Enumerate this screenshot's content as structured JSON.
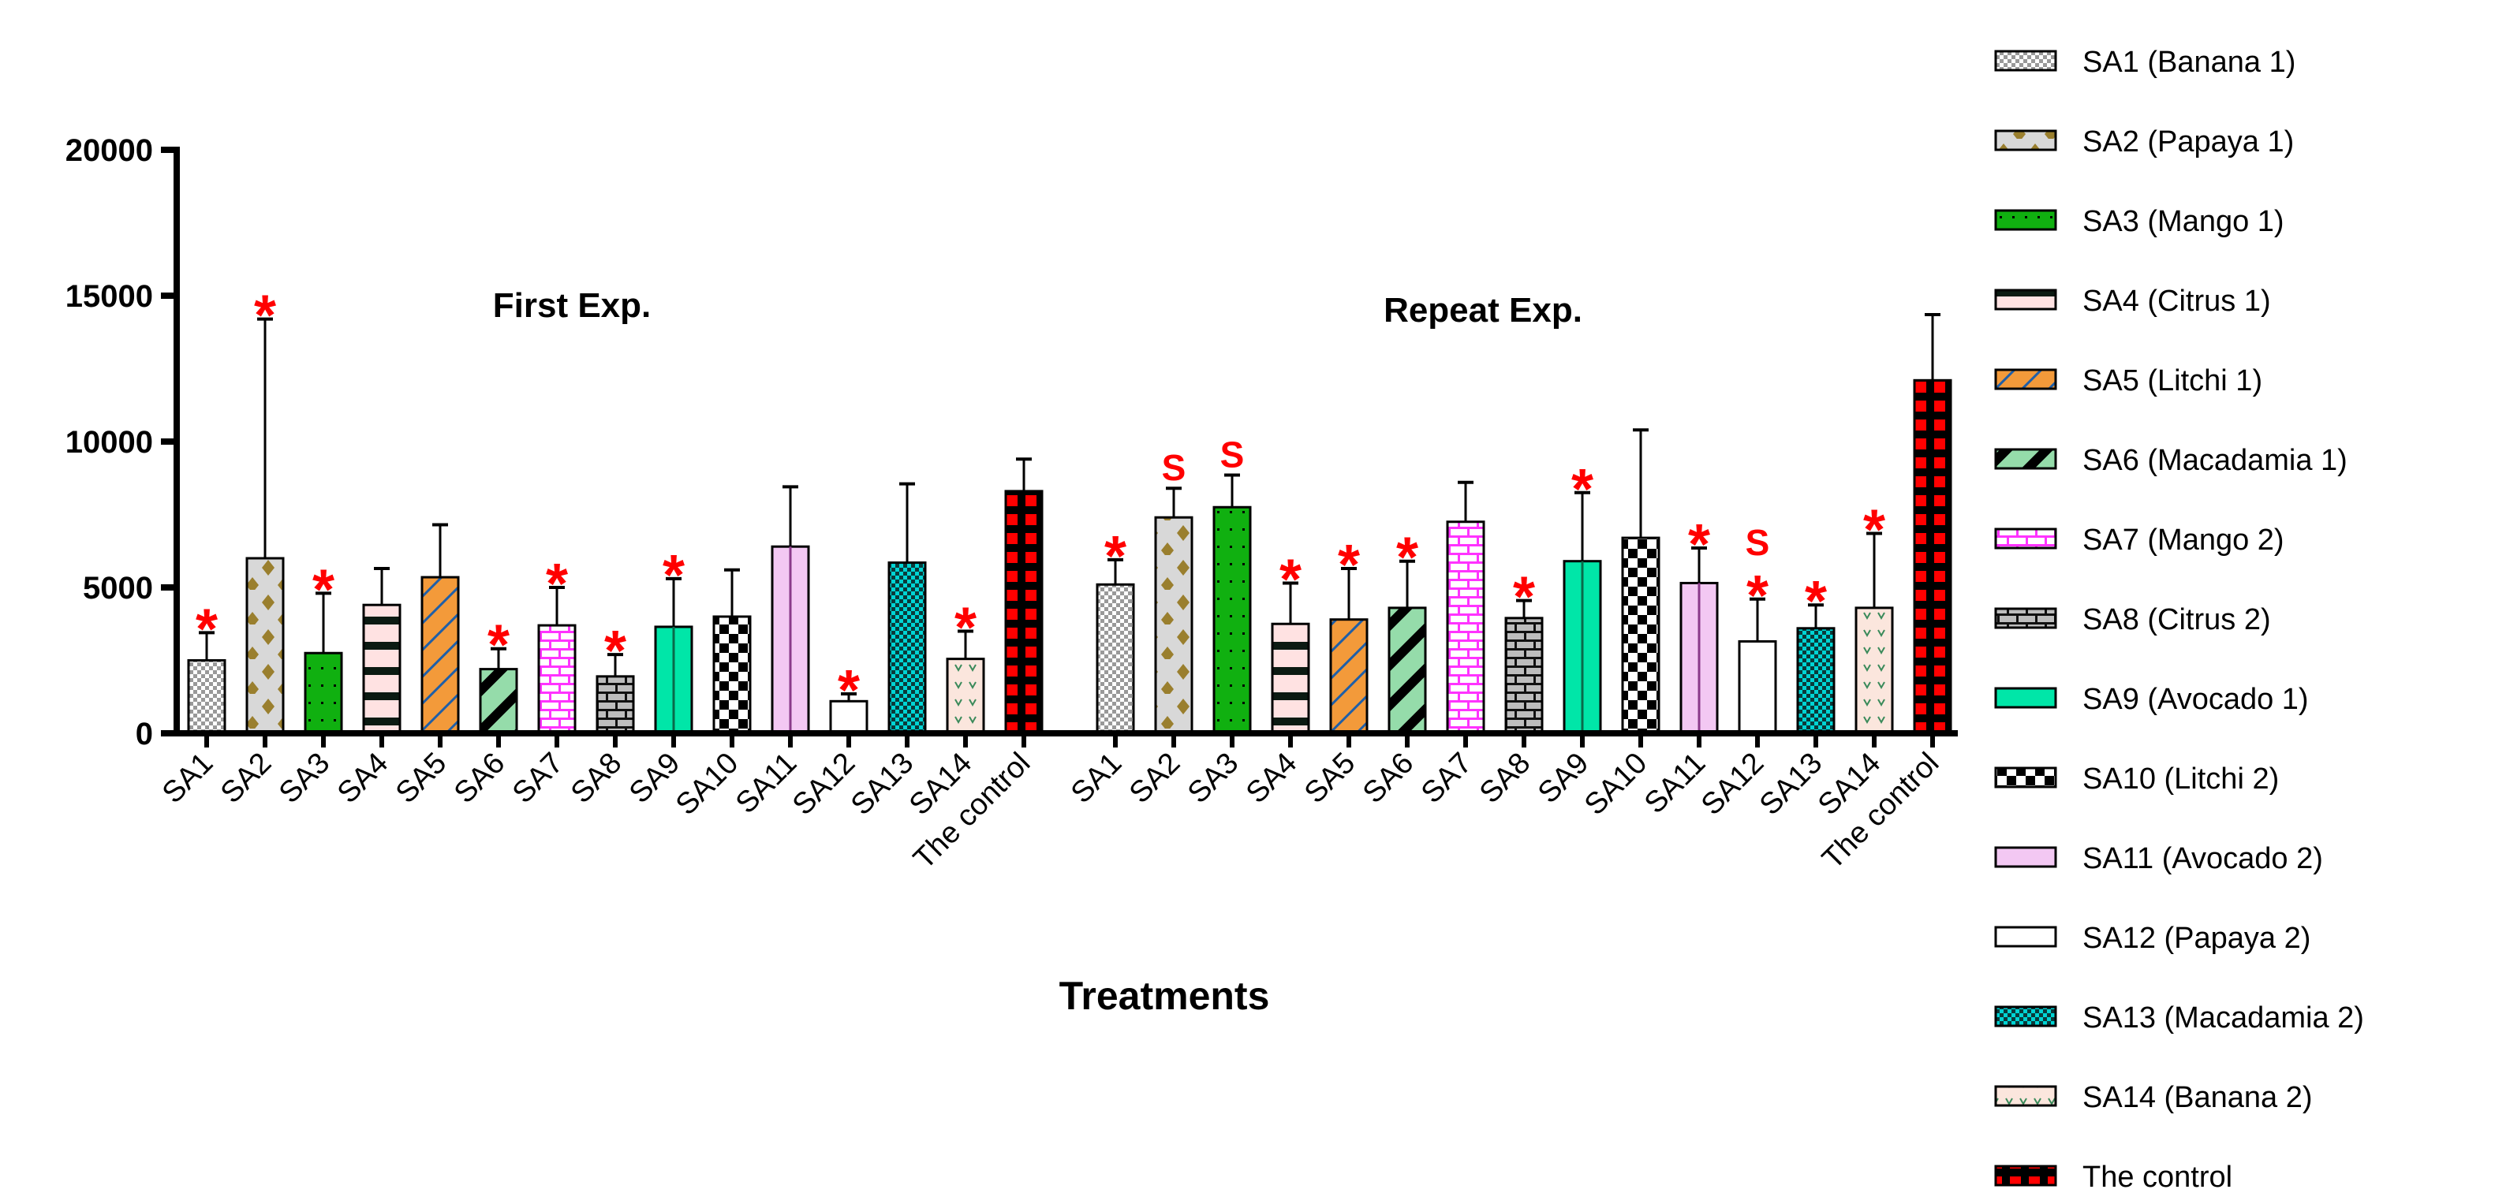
{
  "chart_data": {
    "type": "bar",
    "title": "",
    "xlabel": "Treatments",
    "ylabel": "",
    "ylim": [
      0,
      20000
    ],
    "yticks": [
      "0",
      "5000",
      "10000",
      "15000",
      "20000"
    ],
    "grid": false,
    "legend_placement": "right",
    "categories": [
      "SA1",
      "SA2",
      "SA3",
      "SA4",
      "SA5",
      "SA6",
      "SA7",
      "SA8",
      "SA9",
      "SA10",
      "SA11",
      "SA12",
      "SA13",
      "SA14",
      "The control"
    ],
    "legend": [
      "SA1 (Banana 1)",
      "SA2 (Papaya 1)",
      "SA3 (Mango 1)",
      "SA4 (Citrus 1)",
      "SA5 (Litchi 1)",
      "SA6 (Macadamia 1)",
      "SA7 (Mango 2)",
      "SA8 (Citrus 2)",
      "SA9 (Avocado 1)",
      "SA10 (Litchi 2)",
      "SA11 (Avocado 2)",
      "SA12 (Papaya 2)",
      "SA13 (Macadamia 2)",
      "SA14 (Banana 2)",
      "The control"
    ],
    "series": [
      {
        "name": "First Exp.",
        "values": [
          2500,
          6000,
          2750,
          4400,
          5350,
          2200,
          3700,
          1950,
          3650,
          4000,
          6400,
          1100,
          5850,
          2550,
          8300
        ],
        "error_upper": [
          3450,
          14200,
          4800,
          5650,
          7150,
          2900,
          5000,
          2700,
          5300,
          5600,
          8450,
          1350,
          8550,
          3500,
          9400
        ],
        "annotations": [
          "*",
          "*",
          "*",
          "",
          "",
          "*",
          "*",
          "*",
          "*",
          "",
          "",
          "*",
          "",
          "*",
          ""
        ]
      },
      {
        "name": "Repeat Exp.",
        "values": [
          5100,
          7400,
          7750,
          3750,
          3900,
          4300,
          7250,
          3950,
          5900,
          6700,
          5150,
          3150,
          3600,
          4300,
          12100
        ],
        "error_upper": [
          5950,
          8400,
          8850,
          5150,
          5650,
          5900,
          8600,
          4550,
          8250,
          10400,
          6350,
          4600,
          4400,
          6850,
          14350
        ],
        "annotations": [
          "*",
          "S",
          "S",
          "*",
          "*",
          "*",
          "",
          "*",
          "*",
          "",
          "*",
          "S\n*",
          "*",
          "*",
          ""
        ]
      }
    ]
  }
}
